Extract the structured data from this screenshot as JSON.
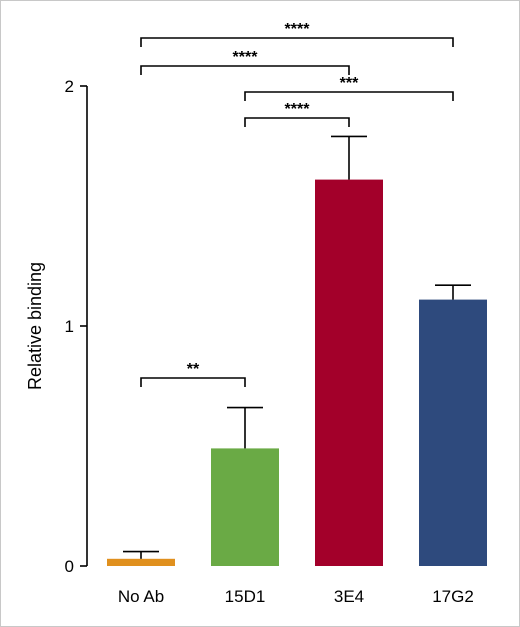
{
  "chart_data": {
    "type": "bar",
    "title": "",
    "xlabel": "",
    "ylabel": "Relative binding",
    "ylim": [
      0,
      2
    ],
    "yticks": [
      0,
      1,
      2
    ],
    "ytick_labels": [
      "0",
      "1",
      "2"
    ],
    "categories": [
      "No Ab",
      "15D1",
      "3E4",
      "17G2"
    ],
    "values": [
      0.03,
      0.49,
      1.61,
      1.11
    ],
    "errors": [
      0.03,
      0.17,
      0.18,
      0.06
    ],
    "colors": [
      "#e0901e",
      "#6aaa45",
      "#a3002a",
      "#2e4a7d"
    ],
    "grid": false,
    "legend": "none",
    "significance": [
      {
        "from": "No Ab",
        "to": "17G2",
        "label": "****"
      },
      {
        "from": "No Ab",
        "to": "3E4",
        "label": "****"
      },
      {
        "from": "15D1",
        "to": "17G2",
        "label": "***"
      },
      {
        "from": "15D1",
        "to": "3E4",
        "label": "****"
      },
      {
        "from": "No Ab",
        "to": "15D1",
        "label": "**"
      }
    ]
  }
}
